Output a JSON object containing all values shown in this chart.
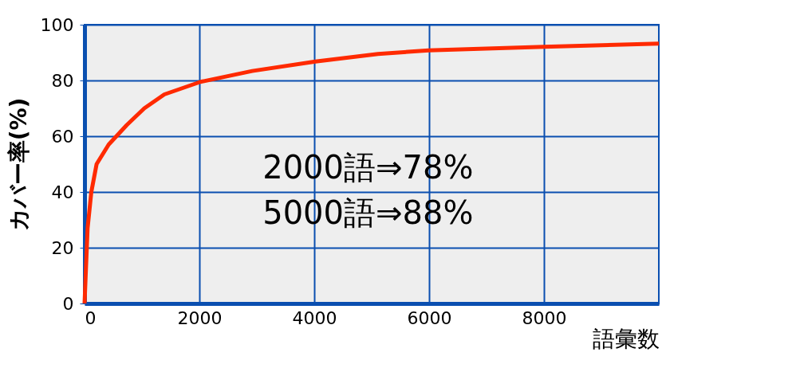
{
  "chart_data": {
    "type": "line",
    "xlabel": "語彙数",
    "ylabel": "カバー率(%)",
    "x": [
      0,
      53,
      118,
      210,
      420,
      735,
      1040,
      1390,
      2020,
      2920,
      4020,
      5110,
      5990,
      8000,
      10000
    ],
    "series": [
      {
        "color": "#ff2a00",
        "values": [
          0,
          27,
          40,
          50,
          57,
          64,
          70,
          75,
          79.5,
          83.4,
          86.8,
          89.5,
          90.8,
          92.1,
          93.2
        ]
      }
    ],
    "xlim": [
      0,
      10000
    ],
    "xticks": [
      0,
      2000,
      4000,
      6000,
      8000
    ],
    "ylim": [
      0,
      100
    ],
    "yticks": [
      0,
      20,
      40,
      60,
      80,
      100
    ],
    "grid": true,
    "marker": "none",
    "line_style": "solid",
    "annotations": [
      "2000語⇒78%",
      "5000語⇒88%"
    ]
  }
}
